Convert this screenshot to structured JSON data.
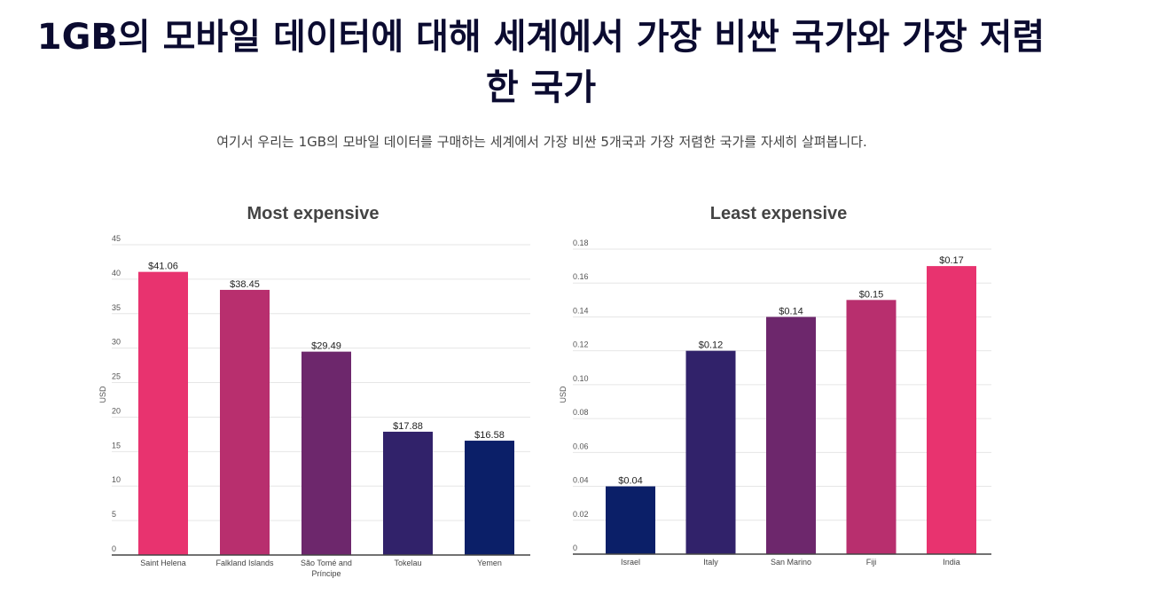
{
  "header": {
    "title": "1GB의 모바일 데이터에 대해 세계에서 가장 비싼 국가와 가장 저렴한 국가",
    "subtitle": "여기서 우리는 1GB의 모바일 데이터를 구매하는 세계에서 가장 비싼 5개국과 가장 저렴한 국가를 자세히 살펴봅니다."
  },
  "chart_data": [
    {
      "type": "bar",
      "title": "Most expensive",
      "ylabel": "USD",
      "xlabel": "",
      "ylim": [
        0,
        45
      ],
      "yticks": [
        "0",
        "5",
        "10",
        "15",
        "20",
        "25",
        "30",
        "35",
        "40",
        "45"
      ],
      "categories": [
        "Saint Helena",
        "Falkland Islands",
        "São Tomé and Príncipe",
        "Tokelau",
        "Yemen"
      ],
      "values": [
        41.06,
        38.45,
        29.49,
        17.88,
        16.58
      ],
      "labels": [
        "$41.06",
        "$38.45",
        "$29.49",
        "$17.88",
        "$16.58"
      ],
      "colors": [
        "#e8336f",
        "#b82f6e",
        "#6d276c",
        "#31226a",
        "#0b1f68"
      ],
      "grid": true
    },
    {
      "type": "bar",
      "title": "Least expensive",
      "ylabel": "USD",
      "xlabel": "",
      "ylim": [
        0,
        0.18
      ],
      "yticks": [
        "0",
        "0.02",
        "0.04",
        "0.06",
        "0.08",
        "0.10",
        "0.12",
        "0.14",
        "0.16",
        "0.18"
      ],
      "categories": [
        "Israel",
        "Italy",
        "San Marino",
        "Fiji",
        "India"
      ],
      "values": [
        0.04,
        0.12,
        0.14,
        0.15,
        0.17
      ],
      "labels": [
        "$0.04",
        "$0.12",
        "$0.14",
        "$0.15",
        "$0.17"
      ],
      "colors": [
        "#0b1f68",
        "#31226a",
        "#6d276c",
        "#b82f6e",
        "#e8336f"
      ],
      "grid": true
    }
  ]
}
